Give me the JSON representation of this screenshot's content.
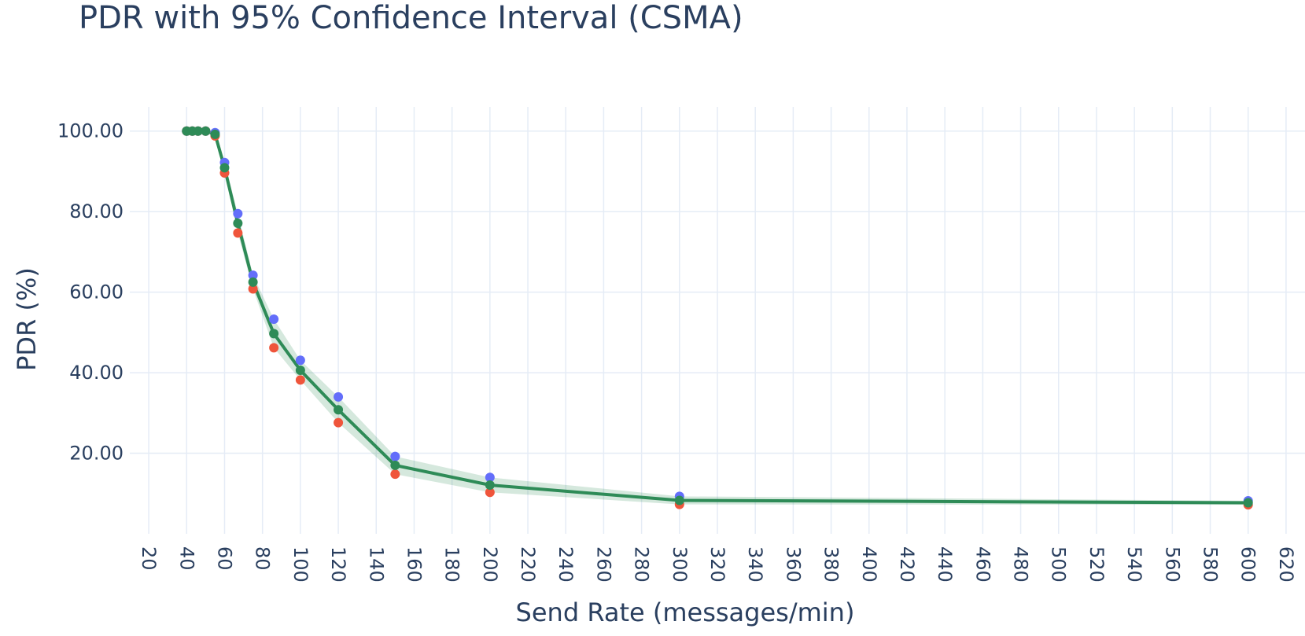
{
  "chart_data": {
    "type": "line",
    "title": "PDR with 95% Confidence Interval (CSMA)",
    "xlabel": "Send Rate (messages/min)",
    "ylabel": "PDR (%)",
    "xlim": [
      10,
      630
    ],
    "ylim": [
      0,
      106
    ],
    "x_ticks": [
      20,
      40,
      60,
      80,
      100,
      120,
      140,
      160,
      180,
      200,
      220,
      240,
      260,
      280,
      300,
      320,
      340,
      360,
      380,
      400,
      420,
      440,
      460,
      480,
      500,
      520,
      540,
      560,
      580,
      600,
      620
    ],
    "y_ticks": [
      20,
      40,
      60,
      80,
      100
    ],
    "y_tick_labels": [
      "20.00",
      "40.00",
      "60.00",
      "80.00",
      "100.00"
    ],
    "grid": true,
    "x": [
      40,
      43,
      46,
      50,
      55,
      60,
      67,
      75,
      86,
      100,
      120,
      150,
      200,
      300,
      600
    ],
    "series": [
      {
        "role": "upper",
        "color": "#636efa",
        "values": [
          100,
          100,
          100,
          100,
          99.6,
          92.2,
          79.5,
          64.2,
          53.3,
          43.1,
          34.0,
          19.2,
          14.0,
          9.3,
          8.2
        ]
      },
      {
        "role": "lower",
        "color": "#ef553b",
        "values": [
          100,
          100,
          100,
          100,
          98.8,
          89.6,
          74.7,
          60.8,
          46.2,
          38.2,
          27.6,
          14.8,
          10.3,
          7.3,
          7.2
        ]
      },
      {
        "role": "mean",
        "color": "#2e8b57",
        "values": [
          100,
          100,
          100,
          100,
          99.2,
          90.9,
          77.1,
          62.5,
          49.7,
          40.6,
          30.8,
          17.0,
          12.1,
          8.3,
          7.7
        ]
      }
    ],
    "band_color": "#2e8b57",
    "band_opacity": 0.2
  }
}
